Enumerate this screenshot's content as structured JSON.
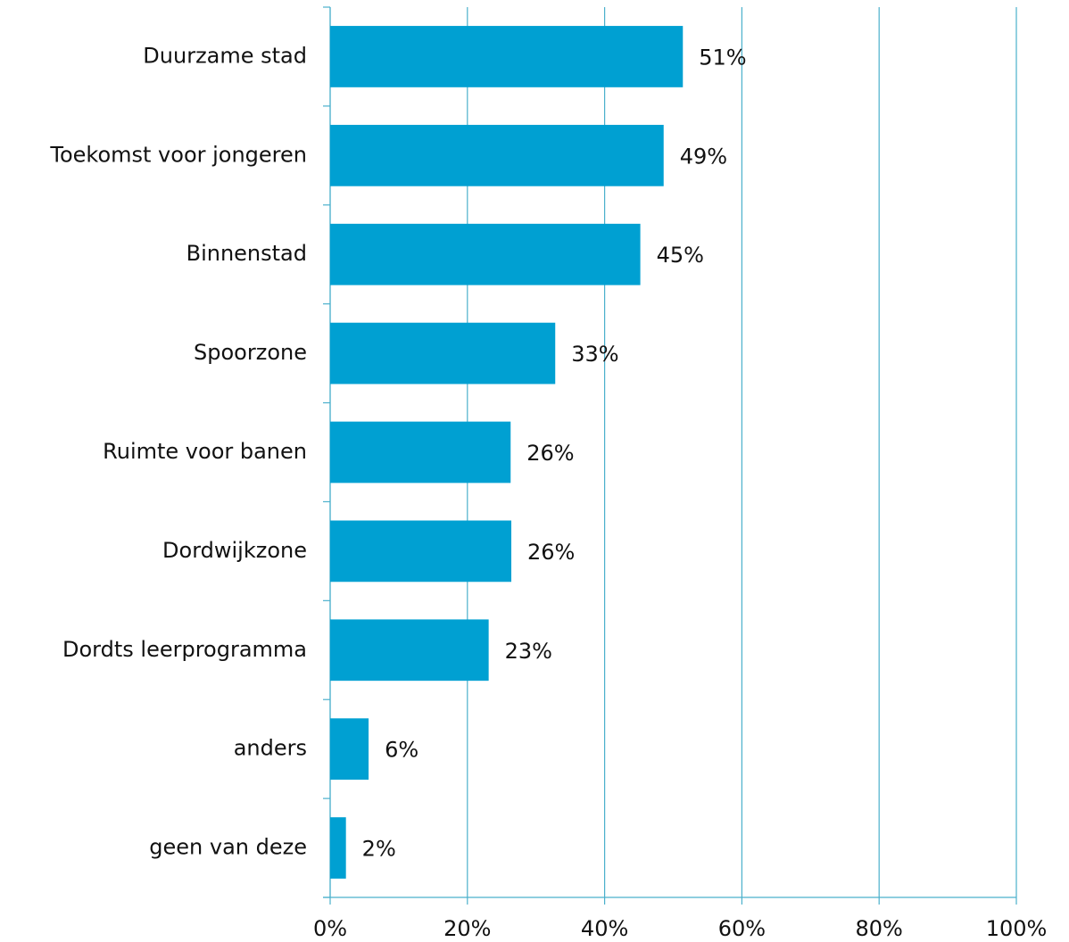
{
  "chart_data": {
    "type": "barh",
    "categories": [
      "Duurzame stad",
      "Toekomst voor jongeren",
      "Binnenstad",
      "Spoorzone",
      "Ruimte voor banen",
      "Dordwijkzone",
      "Dordts leerprogramma",
      "anders",
      "geen van deze"
    ],
    "values": [
      51.4,
      48.6,
      45.2,
      32.8,
      26.3,
      26.4,
      23.1,
      5.6,
      2.3
    ],
    "value_labels": [
      "51%",
      "49%",
      "45%",
      "33%",
      "26%",
      "26%",
      "23%",
      "6%",
      "2%"
    ],
    "color": "#00a0d2",
    "xlim": [
      0,
      100
    ],
    "xticks": [
      {
        "value": 0,
        "label": "0%"
      },
      {
        "value": 20,
        "label": "20%"
      },
      {
        "value": 40,
        "label": "40%"
      },
      {
        "value": 60,
        "label": "60%"
      },
      {
        "value": 80,
        "label": "80%"
      },
      {
        "value": 100,
        "label": "100%"
      }
    ],
    "grid": true
  }
}
